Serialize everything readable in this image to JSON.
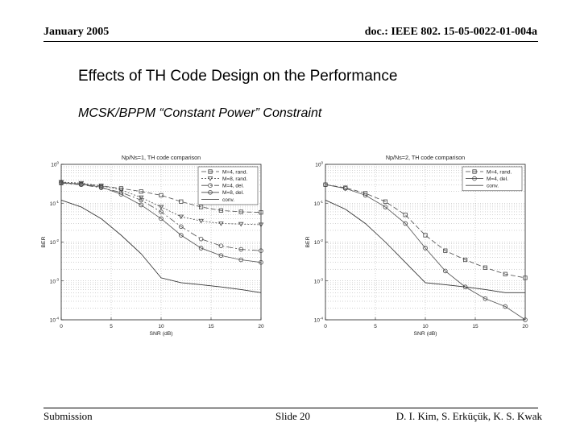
{
  "header": {
    "left": "January 2005",
    "right": "doc.: IEEE 802. 15-05-0022-01-004a"
  },
  "slide": {
    "title": "Effects of TH Code Design on the Performance",
    "subtitle": "MCSK/BPPM “Constant Power” Constraint"
  },
  "footer": {
    "left": "Submission",
    "middle": "Slide 20",
    "right": "D. I. Kim, S. Erküçük, K. S. Kwak"
  },
  "chart_data": [
    {
      "type": "line",
      "title": "Np/Ns=1, TH code comparison",
      "xlabel": "SNR (dB)",
      "ylabel": "BER",
      "xlim": [
        0,
        20
      ],
      "ylim_log10": [
        -4,
        0
      ],
      "xticks": [
        0,
        5,
        10,
        15,
        20
      ],
      "yticks": [
        "10^0",
        "10^-1",
        "10^-2",
        "10^-3",
        "10^-4"
      ],
      "grid": true,
      "legend_position": "top-right",
      "series": [
        {
          "name": "M=4, rand.",
          "marker": "square",
          "dash": "6,3",
          "x": [
            0,
            2,
            4,
            6,
            8,
            10,
            12,
            14,
            16,
            18,
            20
          ],
          "y": [
            0.33,
            0.31,
            0.28,
            0.24,
            0.2,
            0.16,
            0.11,
            0.08,
            0.065,
            0.06,
            0.058
          ]
        },
        {
          "name": "M=8, rand.",
          "marker": "triangle-down",
          "dash": "2,2",
          "x": [
            0,
            2,
            4,
            6,
            8,
            10,
            12,
            14,
            16,
            18,
            20
          ],
          "y": [
            0.35,
            0.33,
            0.28,
            0.22,
            0.14,
            0.08,
            0.045,
            0.035,
            0.03,
            0.029,
            0.028
          ]
        },
        {
          "name": "M=4, del.",
          "marker": "circle",
          "dash": "8,3,2,3",
          "x": [
            0,
            2,
            4,
            6,
            8,
            10,
            12,
            14,
            16,
            18,
            20
          ],
          "y": [
            0.33,
            0.3,
            0.25,
            0.19,
            0.12,
            0.06,
            0.025,
            0.012,
            0.008,
            0.0065,
            0.006
          ]
        },
        {
          "name": "M=8, del.",
          "marker": "circle",
          "dash": "",
          "x": [
            0,
            2,
            4,
            6,
            8,
            10,
            12,
            14,
            16,
            18,
            20
          ],
          "y": [
            0.34,
            0.31,
            0.26,
            0.17,
            0.09,
            0.04,
            0.015,
            0.007,
            0.0045,
            0.0035,
            0.003
          ]
        },
        {
          "name": "conv.",
          "marker": "none",
          "dash": "",
          "x": [
            0,
            2,
            4,
            6,
            8,
            10,
            12,
            14,
            16,
            18,
            20
          ],
          "y": [
            0.12,
            0.08,
            0.04,
            0.015,
            0.005,
            0.0012,
            0.0009,
            0.0008,
            0.0007,
            0.0006,
            0.0005
          ]
        }
      ]
    },
    {
      "type": "line",
      "title": "Np/Ns=2, TH code comparison",
      "xlabel": "SNR (dB)",
      "ylabel": "BER",
      "xlim": [
        0,
        20
      ],
      "ylim_log10": [
        -4,
        0
      ],
      "xticks": [
        0,
        5,
        10,
        15,
        20
      ],
      "yticks": [
        "10^0",
        "10^-1",
        "10^-2",
        "10^-3",
        "10^-4"
      ],
      "grid": true,
      "legend_position": "top-right",
      "series": [
        {
          "name": "M=4, rand.",
          "marker": "square",
          "dash": "6,3",
          "x": [
            0,
            2,
            4,
            6,
            8,
            10,
            12,
            14,
            16,
            18,
            20
          ],
          "y": [
            0.3,
            0.25,
            0.18,
            0.11,
            0.05,
            0.015,
            0.006,
            0.0035,
            0.0022,
            0.0015,
            0.0012
          ]
        },
        {
          "name": "M=4, del.",
          "marker": "circle",
          "dash": "",
          "x": [
            0,
            2,
            4,
            6,
            8,
            10,
            12,
            14,
            16,
            18,
            20
          ],
          "y": [
            0.3,
            0.24,
            0.16,
            0.08,
            0.03,
            0.007,
            0.0018,
            0.0007,
            0.00035,
            0.00022,
            0.0001
          ]
        },
        {
          "name": "conv.",
          "marker": "none",
          "dash": "",
          "x": [
            0,
            2,
            4,
            6,
            8,
            10,
            12,
            14,
            16,
            18,
            20
          ],
          "y": [
            0.12,
            0.07,
            0.03,
            0.01,
            0.003,
            0.0009,
            0.0008,
            0.0007,
            0.0006,
            0.0005,
            0.0005
          ]
        }
      ]
    }
  ]
}
